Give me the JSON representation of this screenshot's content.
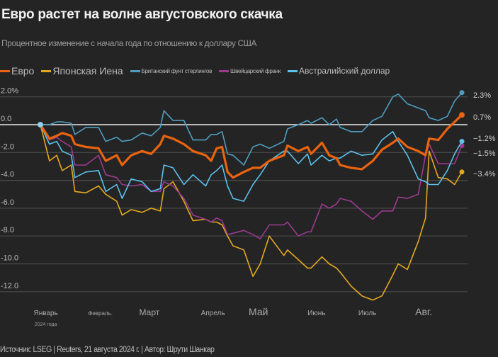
{
  "header": {
    "title": "Евро растет на волне августовского скачка",
    "subtitle": "Процентное изменение с начала года по отношению к доллару США"
  },
  "footer": {
    "source": "Источник: LSEG | Reuters, 21 августа 2024 г. | Автор: Шрути Шанкар"
  },
  "chart_data": {
    "type": "line",
    "title": "Евро растет на волне августовского скачка",
    "ylabel": "Процентное изменение с начала года по отношению к доллару США",
    "xlabel": "",
    "x_unit": "day of year 2024",
    "xlim": [
      1,
      233
    ],
    "ylim": [
      -13,
      2.6
    ],
    "grid": true,
    "legend_position": "top-left",
    "y_ticks": [
      {
        "v": 2,
        "label": "2.0%"
      },
      {
        "v": 0,
        "label": "0.0"
      },
      {
        "v": -2,
        "label": "-2.0"
      },
      {
        "v": -4,
        "label": "-4.0"
      },
      {
        "v": -6,
        "label": "-6.0"
      },
      {
        "v": -8,
        "label": "-8.0"
      },
      {
        "v": -10,
        "label": "-10.0"
      },
      {
        "v": -12,
        "label": "-12.0"
      }
    ],
    "x_ticks": [
      {
        "d": 4,
        "label": "Январь",
        "size": "s"
      },
      {
        "d": 34,
        "label": "Февраль.",
        "size": "xs"
      },
      {
        "d": 61,
        "label": "Март",
        "size": "m"
      },
      {
        "d": 96,
        "label": "Апрель",
        "size": "s"
      },
      {
        "d": 121,
        "label": "Май",
        "size": "l"
      },
      {
        "d": 153,
        "label": "Июнь",
        "size": "s"
      },
      {
        "d": 181,
        "label": "Июль",
        "size": "s"
      },
      {
        "d": 212,
        "label": "Авг.",
        "size": "l"
      }
    ],
    "x_sublabel": "2024 года",
    "x": [
      1,
      6,
      10,
      13,
      18,
      20,
      26,
      33,
      37,
      43,
      46,
      51,
      57,
      62,
      67,
      69,
      74,
      80,
      85,
      92,
      95,
      98,
      101,
      104,
      107,
      113,
      118,
      122,
      127,
      135,
      137,
      143,
      148,
      150,
      156,
      160,
      164,
      166,
      172,
      178,
      184,
      189,
      195,
      198,
      203,
      209,
      213,
      215,
      220,
      225,
      229,
      233
    ],
    "series": [
      {
        "name": "Британский фунт стерлингов",
        "color": "#4e9dbf",
        "width": 1.6,
        "end_label": "2.3%",
        "legend_size": "small",
        "values": [
          0,
          0,
          0.2,
          0.2,
          0.1,
          -0.7,
          -0.2,
          -0.2,
          -1.2,
          -0.9,
          -1.2,
          -1.1,
          -0.6,
          -0.8,
          -0.2,
          1.0,
          0.3,
          0.3,
          -1.1,
          -1.1,
          -0.7,
          -0.7,
          -0.5,
          -2.1,
          -2.2,
          -2.9,
          -1.6,
          -1.4,
          -1.7,
          -1.2,
          -0.3,
          0,
          0.3,
          0.1,
          0.5,
          0,
          0.4,
          -0.2,
          -0.5,
          -0.5,
          0.3,
          0.6,
          2.0,
          2.2,
          1.5,
          1.2,
          1.0,
          0.5,
          0.3,
          0.6,
          1.7,
          2.3
        ]
      },
      {
        "name": "Японская Иена",
        "color": "#e2a91e",
        "width": 1.6,
        "end_label": "-3.4%",
        "legend_size": "big",
        "values": [
          0,
          -2.6,
          -2.2,
          -3.3,
          -2.9,
          -4.8,
          -4.9,
          -4.4,
          -5.0,
          -5.5,
          -6.5,
          -6.1,
          -6.3,
          -6.0,
          -6.2,
          -4.6,
          -4.1,
          -5.5,
          -6.9,
          -6.8,
          -7.0,
          -7.0,
          -7.2,
          -8.0,
          -8.7,
          -9.0,
          -10.9,
          -10.0,
          -8.0,
          -9.4,
          -9.0,
          -9.7,
          -10.3,
          -10.3,
          -9.5,
          -10.0,
          -10.3,
          -10.6,
          -11.6,
          -12.3,
          -12.6,
          -12.3,
          -10.8,
          -10.0,
          -10.4,
          -8.4,
          -6.7,
          -1.9,
          -3.8,
          -3.9,
          -4.3,
          -3.4
        ]
      },
      {
        "name": "Швейцарский франк",
        "color": "#9c3a90",
        "width": 1.6,
        "end_label": "-1.5%",
        "legend_size": "small",
        "values": [
          0,
          -1.1,
          -0.9,
          -1.2,
          -1.6,
          -2.9,
          -2.9,
          -2.2,
          -3.6,
          -3.8,
          -4.3,
          -4.4,
          -4.3,
          -4.8,
          -4.8,
          -4.1,
          -4.4,
          -5.3,
          -6.5,
          -6.8,
          -7.0,
          -6.7,
          -6.9,
          -7.9,
          -7.8,
          -7.6,
          -7.9,
          -8.2,
          -7.2,
          -7.2,
          -7.0,
          -8.0,
          -7.7,
          -7.7,
          -5.7,
          -6.0,
          -5.7,
          -5.3,
          -5.5,
          -6.2,
          -6.8,
          -6.2,
          -6.2,
          -5.2,
          -5.3,
          -5.0,
          -2.2,
          -1.4,
          -2.8,
          -2.8,
          -2.8,
          -1.5
        ]
      },
      {
        "name": "Австралийский доллар",
        "color": "#5cc1ee",
        "width": 1.6,
        "end_label": "-1.2%",
        "legend_size": "mid",
        "values": [
          0,
          -1.4,
          -1.2,
          -1.9,
          -2.2,
          -3.8,
          -3.4,
          -3.3,
          -4.8,
          -4.3,
          -5.3,
          -3.9,
          -4.1,
          -4.8,
          -4.6,
          -2.9,
          -3.1,
          -4.3,
          -3.6,
          -4.4,
          -3.6,
          -3.3,
          -2.9,
          -4.4,
          -5.3,
          -5.5,
          -4.3,
          -3.6,
          -2.6,
          -1.9,
          -1.9,
          -2.8,
          -2.1,
          -2.9,
          -2.2,
          -2.6,
          -2.4,
          -2.4,
          -1.9,
          -2.2,
          -2.1,
          -1.1,
          -0.5,
          -1.2,
          -2.2,
          -3.9,
          -4.1,
          -4.3,
          -4.3,
          -3.3,
          -2.1,
          -1.2
        ]
      },
      {
        "name": "Евро",
        "color": "#ea630f",
        "width": 3.2,
        "end_label": "0.7%",
        "legend_size": "big",
        "values": [
          0,
          -1.0,
          -0.8,
          -0.6,
          -0.8,
          -1.4,
          -1.6,
          -1.7,
          -2.6,
          -2.2,
          -2.9,
          -2.2,
          -1.9,
          -2.1,
          -1.4,
          -0.8,
          -1.0,
          -1.4,
          -1.9,
          -2.2,
          -2.6,
          -1.7,
          -1.6,
          -3.4,
          -3.8,
          -3.4,
          -3.1,
          -3.1,
          -2.6,
          -2.2,
          -1.5,
          -1.9,
          -1.6,
          -2.1,
          -1.3,
          -2.2,
          -2.4,
          -2.9,
          -3.1,
          -3.2,
          -2.6,
          -1.8,
          -1.3,
          -1.0,
          -1.6,
          -1.9,
          -2.2,
          -1.0,
          -1.1,
          -0.3,
          0.2,
          0.7
        ]
      }
    ],
    "legend_order": [
      4,
      1,
      0,
      2,
      3
    ]
  }
}
